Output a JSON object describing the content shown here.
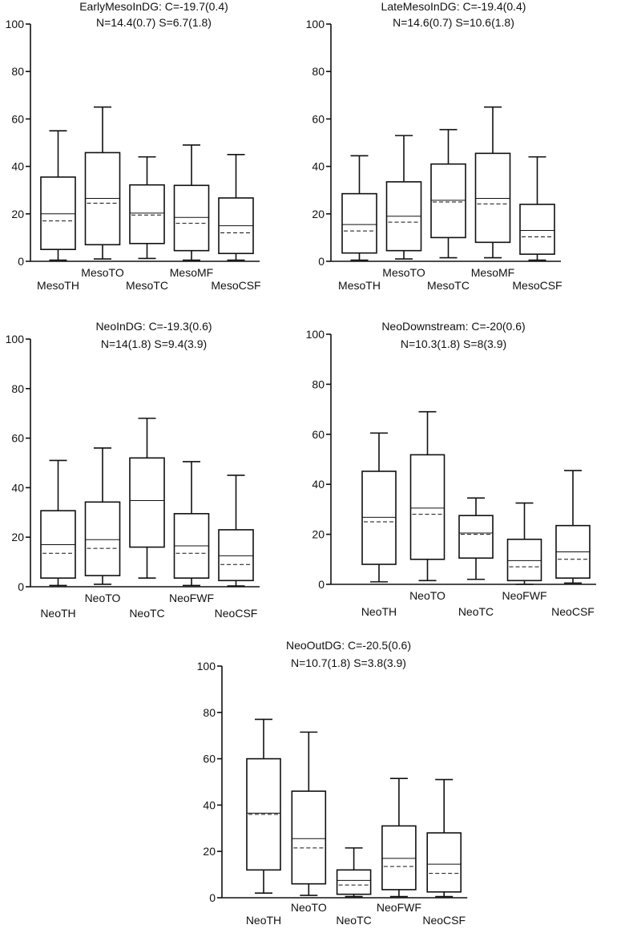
{
  "chart_data": [
    {
      "type": "box",
      "title": "EarlyMesoInDG: C=-19.7(0.4)",
      "subtitle": "N=14.4(0.7) S=6.7(1.8)",
      "ylim": [
        0,
        100
      ],
      "yticks": [
        "0",
        "20",
        "40",
        "60",
        "80",
        "100"
      ],
      "categories": [
        "MesoTH",
        "MesoTO",
        "MesoTC",
        "MesoMF",
        "MesoCSF"
      ],
      "boxes": [
        {
          "min": 0.5,
          "q1": 5,
          "median": 20,
          "mean": 17,
          "q3": 35.5,
          "max": 55
        },
        {
          "min": 1,
          "q1": 7,
          "median": 26.5,
          "mean": 24.5,
          "q3": 45.8,
          "max": 65
        },
        {
          "min": 1.2,
          "q1": 7.5,
          "median": 20.3,
          "mean": 19.5,
          "q3": 32.2,
          "max": 44
        },
        {
          "min": 0.5,
          "q1": 4.5,
          "median": 18.5,
          "mean": 16,
          "q3": 32,
          "max": 49
        },
        {
          "min": 0.5,
          "q1": 3.3,
          "median": 15,
          "mean": 12,
          "q3": 26.7,
          "max": 45
        }
      ]
    },
    {
      "type": "box",
      "title": "LateMesoInDG: C=-19.4(0.4)",
      "subtitle": "N=14.6(0.7) S=10.6(1.8)",
      "ylim": [
        0,
        100
      ],
      "yticks": [
        "0",
        "20",
        "40",
        "60",
        "80",
        "100"
      ],
      "categories": [
        "MesoTH",
        "MesoTO",
        "MesoTC",
        "MesoMF",
        "MesoCSF"
      ],
      "boxes": [
        {
          "min": 0.5,
          "q1": 3.5,
          "median": 15.5,
          "mean": 12.8,
          "q3": 28.5,
          "max": 44.5
        },
        {
          "min": 1,
          "q1": 4.5,
          "median": 19,
          "mean": 16.5,
          "q3": 33.5,
          "max": 53
        },
        {
          "min": 1.5,
          "q1": 10,
          "median": 25.7,
          "mean": 25,
          "q3": 41,
          "max": 55.5
        },
        {
          "min": 1.5,
          "q1": 8,
          "median": 26.5,
          "mean": 24.2,
          "q3": 45.5,
          "max": 65
        },
        {
          "min": 0.5,
          "q1": 3,
          "median": 13,
          "mean": 10.3,
          "q3": 24,
          "max": 44
        }
      ]
    },
    {
      "type": "box",
      "title": "NeoInDG: C=-19.3(0.6)",
      "subtitle": "N=14(1.8) S=9.4(3.9)",
      "ylim": [
        0,
        100
      ],
      "yticks": [
        "0",
        "20",
        "40",
        "60",
        "80",
        "100"
      ],
      "categories": [
        "NeoTH",
        "NeoTO",
        "NeoTC",
        "NeoFWF",
        "NeoCSF"
      ],
      "boxes": [
        {
          "min": 0.5,
          "q1": 3.5,
          "median": 17,
          "mean": 13.5,
          "q3": 30.7,
          "max": 51
        },
        {
          "min": 1,
          "q1": 4.5,
          "median": 19,
          "mean": 15.5,
          "q3": 34.2,
          "max": 56
        },
        {
          "min": 3.5,
          "q1": 16,
          "median": 34.8,
          "mean": 34.8,
          "q3": 52,
          "max": 68
        },
        {
          "min": 0.5,
          "q1": 3.5,
          "median": 16.5,
          "mean": 13.5,
          "q3": 29.5,
          "max": 50.5
        },
        {
          "min": 0.3,
          "q1": 2.5,
          "median": 12.5,
          "mean": 9,
          "q3": 23,
          "max": 45
        }
      ]
    },
    {
      "type": "box",
      "title": "NeoDownstream: C=-20(0.6)",
      "subtitle": "N=10.3(1.8) S=8(3.9)",
      "ylim": [
        0,
        100
      ],
      "yticks": [
        "0",
        "20",
        "40",
        "60",
        "80",
        "100"
      ],
      "categories": [
        "NeoTH",
        "NeoTO",
        "NeoTC",
        "NeoFWF",
        "NeoCSF"
      ],
      "boxes": [
        {
          "min": 1,
          "q1": 8,
          "median": 26.8,
          "mean": 25,
          "q3": 45.2,
          "max": 60.5
        },
        {
          "min": 1.5,
          "q1": 10,
          "median": 30.5,
          "mean": 28,
          "q3": 51.8,
          "max": 69
        },
        {
          "min": 2,
          "q1": 10.5,
          "median": 20.5,
          "mean": 20,
          "q3": 27.5,
          "max": 34.5
        },
        {
          "min": 0,
          "q1": 1.5,
          "median": 9.5,
          "mean": 7,
          "q3": 18,
          "max": 32.5
        },
        {
          "min": 0.5,
          "q1": 2.5,
          "median": 13,
          "mean": 10,
          "q3": 23.5,
          "max": 45.5
        }
      ]
    },
    {
      "type": "box",
      "title": "NeoOutDG: C=-20.5(0.6)",
      "subtitle": "N=10.7(1.8) S=3.8(3.9)",
      "ylim": [
        0,
        100
      ],
      "yticks": [
        "0",
        "20",
        "40",
        "60",
        "80",
        "100"
      ],
      "categories": [
        "NeoTH",
        "NeoTO",
        "NeoTC",
        "NeoFWF",
        "NeoCSF"
      ],
      "boxes": [
        {
          "min": 2,
          "q1": 12,
          "median": 36.5,
          "mean": 36,
          "q3": 60,
          "max": 77
        },
        {
          "min": 1,
          "q1": 6,
          "median": 25.5,
          "mean": 21.5,
          "q3": 46,
          "max": 71.5
        },
        {
          "min": 0.5,
          "q1": 1.5,
          "median": 7.5,
          "mean": 5.5,
          "q3": 12,
          "max": 21.5
        },
        {
          "min": 0.5,
          "q1": 3.5,
          "median": 17,
          "mean": 13.5,
          "q3": 31,
          "max": 51.5
        },
        {
          "min": 0.5,
          "q1": 2.5,
          "median": 14.5,
          "mean": 10.5,
          "q3": 28,
          "max": 51
        }
      ]
    }
  ]
}
